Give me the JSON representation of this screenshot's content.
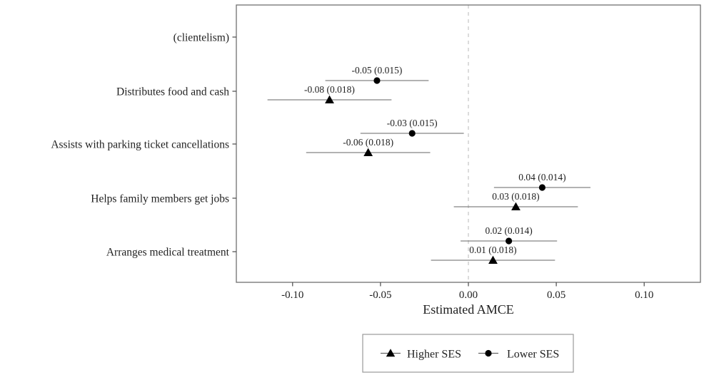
{
  "chart_data": {
    "type": "scatter",
    "subtype": "coefficient-dot-whisker-plot",
    "title": "",
    "xlabel": "Estimated AMCE",
    "x_ticks": [
      "-0.10",
      "-0.05",
      "0.00",
      "0.05",
      "0.10"
    ],
    "x_tick_values": [
      -0.1,
      -0.05,
      0.0,
      0.05,
      0.1
    ],
    "xlim": [
      -0.132,
      0.132
    ],
    "reference_line_x": 0,
    "ci_level_multiplier": 1.96,
    "grid": false,
    "categories": [
      "(clientelism)",
      "Distributes food and cash",
      "Assists with parking ticket cancellations",
      "Helps family members get jobs",
      "Arranges medical treatment"
    ],
    "series": [
      {
        "name": "Lower SES",
        "marker": "circle",
        "values": [
          null,
          -0.05,
          -0.03,
          0.04,
          0.02
        ],
        "se": [
          null,
          0.015,
          0.015,
          0.014,
          0.014
        ],
        "point_labels": [
          "",
          "-0.05 (0.015)",
          "-0.03 (0.015)",
          "0.04 (0.014)",
          "0.02 (0.014)"
        ],
        "x_plot": [
          null,
          -0.052,
          -0.032,
          0.042,
          0.023
        ]
      },
      {
        "name": "Higher SES",
        "marker": "triangle",
        "values": [
          null,
          -0.08,
          -0.06,
          0.03,
          0.01
        ],
        "se": [
          null,
          0.018,
          0.018,
          0.018,
          0.018
        ],
        "point_labels": [
          "",
          "-0.08 (0.018)",
          "-0.06 (0.018)",
          "0.03 (0.018)",
          "0.01 (0.018)"
        ],
        "x_plot": [
          null,
          -0.079,
          -0.057,
          0.027,
          0.014
        ]
      }
    ],
    "legend": {
      "position": "bottom",
      "entries": [
        {
          "label": "Higher SES",
          "marker": "triangle"
        },
        {
          "label": "Lower SES",
          "marker": "circle"
        }
      ]
    },
    "colors": {
      "marker": "#000000",
      "ci_line": "#666666",
      "zero_line": "#c9c9c9",
      "panel_border": "#707070",
      "tick": "#4a4a4a",
      "text": "#1f1f1f",
      "legend_border": "#999999",
      "background": "#ffffff"
    }
  }
}
